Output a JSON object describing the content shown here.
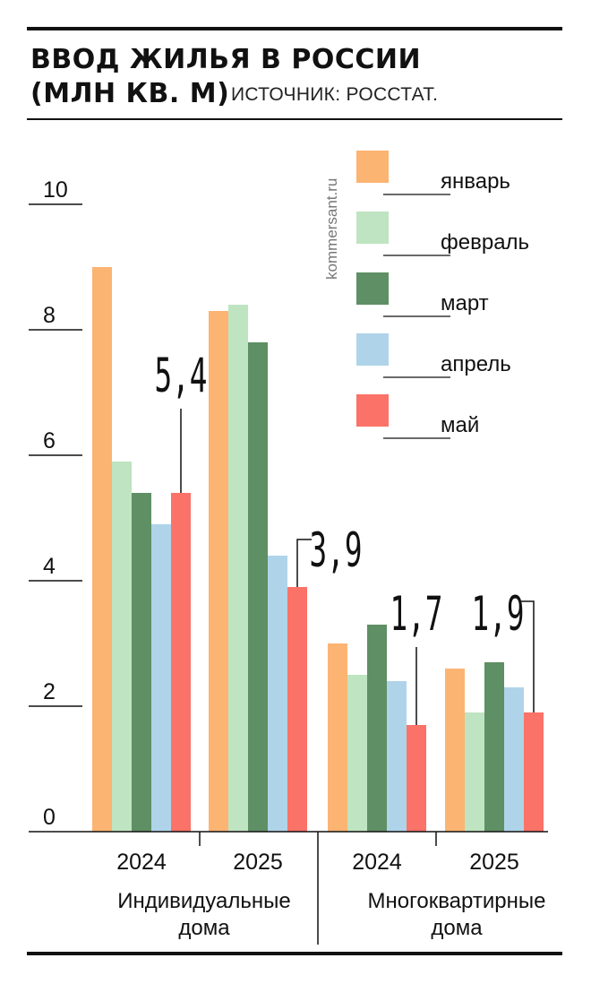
{
  "title_line1": "ВВОД ЖИЛЬЯ В РОССИИ",
  "title_line2": "(МЛН КВ. М)",
  "source": "ИСТОЧНИК: РОССТАТ.",
  "watermark": "kommersant.ru",
  "chart_data": {
    "type": "bar",
    "ylim": [
      0,
      10
    ],
    "yticks": [
      "0",
      "2",
      "4",
      "6",
      "8",
      "10"
    ],
    "months": [
      "январь",
      "февраль",
      "март",
      "апрель",
      "май"
    ],
    "colors": [
      "#fcb473",
      "#bfe4c1",
      "#5f8f64",
      "#afd4e9",
      "#fb7268"
    ],
    "groups": [
      {
        "category": "Индивидуальные дома",
        "year": "2024",
        "values": [
          9.0,
          5.9,
          5.4,
          4.9,
          5.4
        ],
        "label": "5,4"
      },
      {
        "category": "Индивидуальные дома",
        "year": "2025",
        "values": [
          8.3,
          8.4,
          7.8,
          4.4,
          3.9
        ],
        "label": "3,9"
      },
      {
        "category": "Многоквартирные дома",
        "year": "2024",
        "values": [
          3.0,
          2.5,
          3.3,
          2.4,
          1.7
        ],
        "label": "1,7"
      },
      {
        "category": "Многоквартирные дома",
        "year": "2025",
        "values": [
          2.6,
          1.9,
          2.7,
          2.3,
          1.9
        ],
        "label": "1,9"
      }
    ],
    "categories": [
      {
        "line1": "Индивидуальные",
        "line2": "дома"
      },
      {
        "line1": "Многоквартирные",
        "line2": "дома"
      }
    ]
  }
}
